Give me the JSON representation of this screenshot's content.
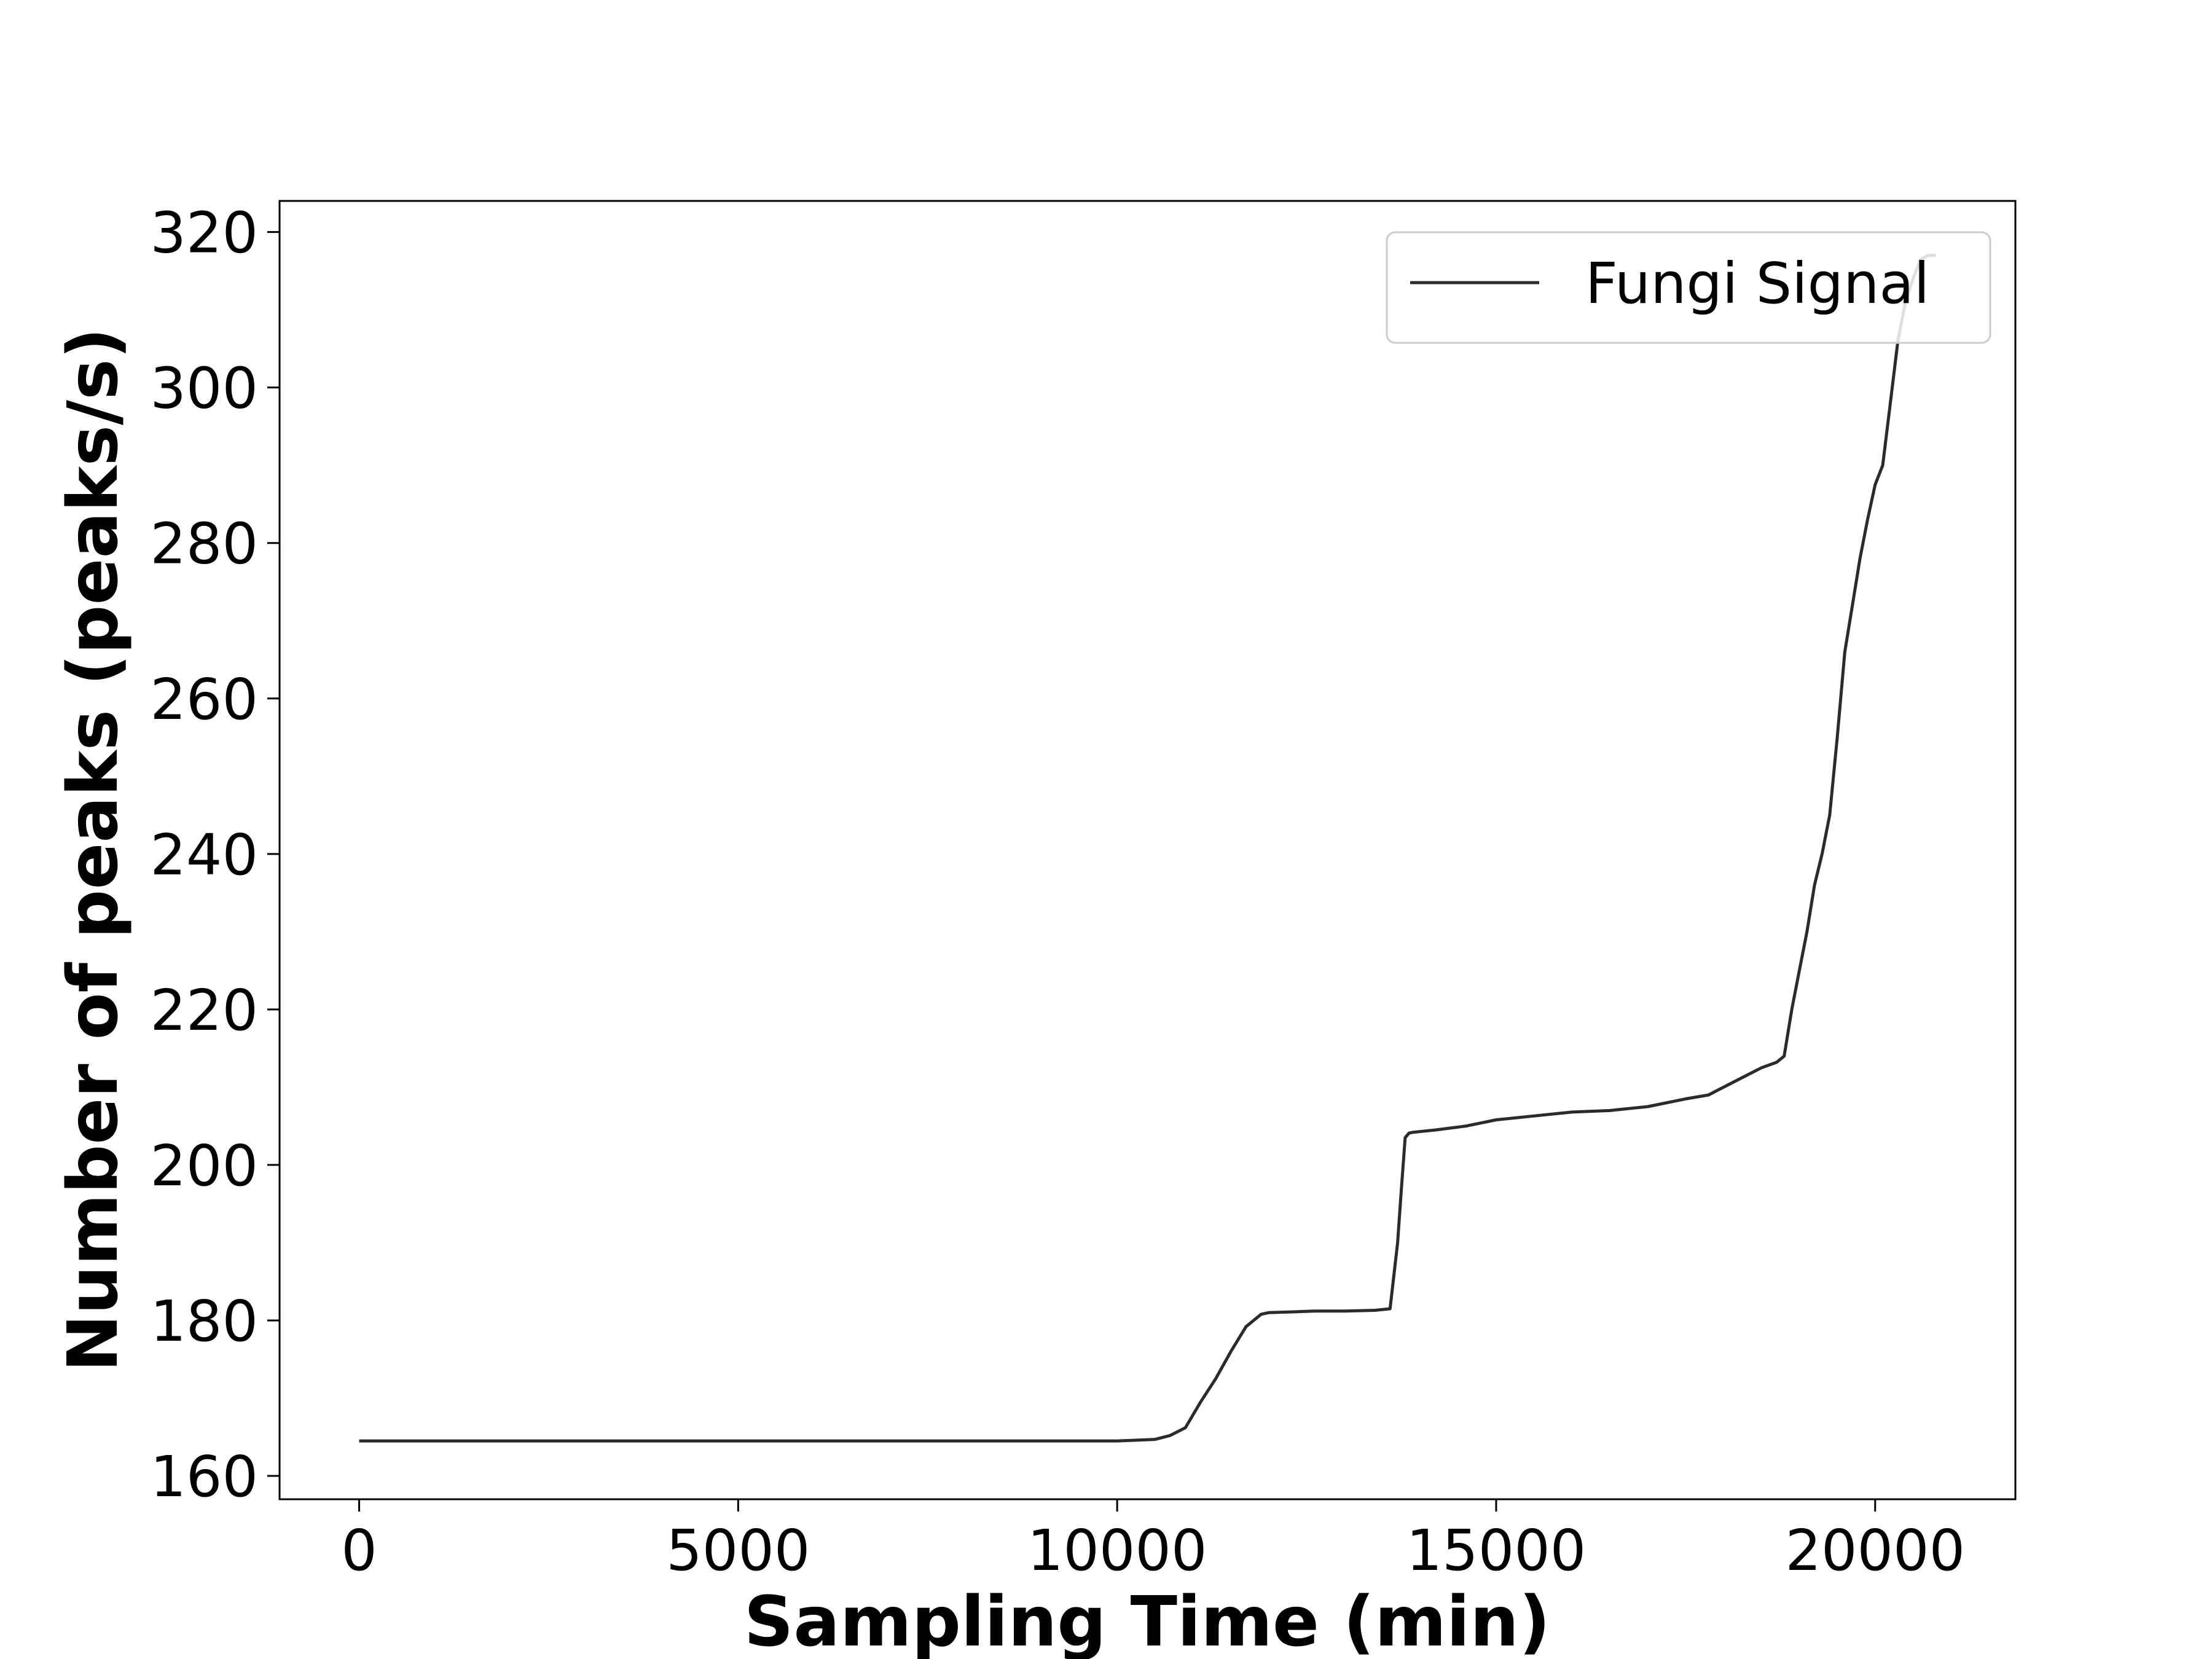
{
  "chart_data": {
    "type": "line",
    "title": "",
    "xlabel": "Sampling Time (min)",
    "ylabel": "Number of peaks (peaks/s)",
    "xlim": [
      -1050,
      21850
    ],
    "ylim": [
      157,
      324
    ],
    "xticks": [
      0,
      5000,
      10000,
      15000,
      20000
    ],
    "yticks": [
      160,
      180,
      200,
      220,
      240,
      260,
      280,
      300,
      320
    ],
    "grid": false,
    "legend_position": "top-right",
    "series": [
      {
        "name": "Fungi Signal",
        "color": "#2b2b2b",
        "x": [
          0,
          2000,
          4000,
          6000,
          8000,
          10000,
          10500,
          10700,
          10900,
          11100,
          11300,
          11500,
          11700,
          11900,
          12000,
          12300,
          12600,
          13000,
          13400,
          13600,
          13700,
          13750,
          13800,
          13850,
          13900,
          14200,
          14600,
          15000,
          15500,
          16000,
          16500,
          17000,
          17500,
          17800,
          18000,
          18300,
          18500,
          18700,
          18800,
          18900,
          19000,
          19100,
          19200,
          19300,
          19400,
          19500,
          19600,
          19700,
          19800,
          19900,
          20000,
          20100,
          20200,
          20300,
          20400,
          20500,
          20600,
          20700,
          20800
        ],
        "y": [
          164.5,
          164.5,
          164.5,
          164.5,
          164.5,
          164.5,
          164.7,
          165.2,
          166.2,
          169.5,
          172.5,
          176.0,
          179.2,
          180.8,
          181.0,
          181.1,
          181.2,
          181.2,
          181.3,
          181.5,
          190.0,
          197.0,
          203.5,
          204.1,
          204.2,
          204.5,
          205.0,
          205.8,
          206.3,
          206.8,
          207.0,
          207.5,
          208.5,
          209.0,
          210.0,
          211.5,
          212.5,
          213.2,
          214.0,
          220.0,
          225.0,
          230.0,
          236.0,
          240.0,
          245.0,
          255.0,
          266.0,
          272.0,
          278.0,
          283.0,
          287.5,
          290.0,
          298.0,
          306.0,
          311.0,
          314.0,
          316.5,
          317.0,
          317.0
        ]
      }
    ]
  }
}
